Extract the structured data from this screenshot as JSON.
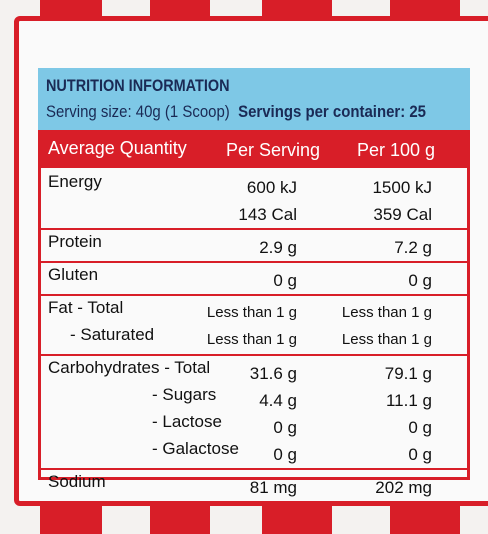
{
  "header": {
    "title": "NUTRITION INFORMATION",
    "serving_size": "Serving size: 40g (1 Scoop)",
    "servings_per_container": "Servings per container: 25"
  },
  "table": {
    "columns": [
      "Average Quantity",
      "Per Serving",
      "Per 100 g"
    ],
    "rows": [
      [
        [
          "Energy"
        ],
        [
          "600 kJ",
          "143 Cal"
        ],
        [
          "1500 kJ",
          "359 Cal"
        ]
      ],
      [
        [
          "Protein"
        ],
        [
          "2.9 g"
        ],
        [
          "7.2 g"
        ]
      ],
      [
        [
          "Gluten"
        ],
        [
          "0 g"
        ],
        [
          "0 g"
        ]
      ],
      [
        [
          "Fat - Total",
          "- Saturated"
        ],
        [
          "Less than 1 g",
          "Less than 1 g"
        ],
        [
          "Less than 1 g",
          "Less than 1 g"
        ]
      ],
      [
        [
          "Carbohydrates - Total",
          "- Sugars",
          "- Lactose",
          "- Galactose"
        ],
        [
          "31.6 g",
          "4.4 g",
          "0 g",
          "0 g"
        ],
        [
          "79.1 g",
          "11.1 g",
          "0 g",
          "0 g"
        ]
      ],
      [
        [
          "Sodium"
        ],
        [
          "81 mg"
        ],
        [
          "202 mg"
        ]
      ]
    ]
  }
}
